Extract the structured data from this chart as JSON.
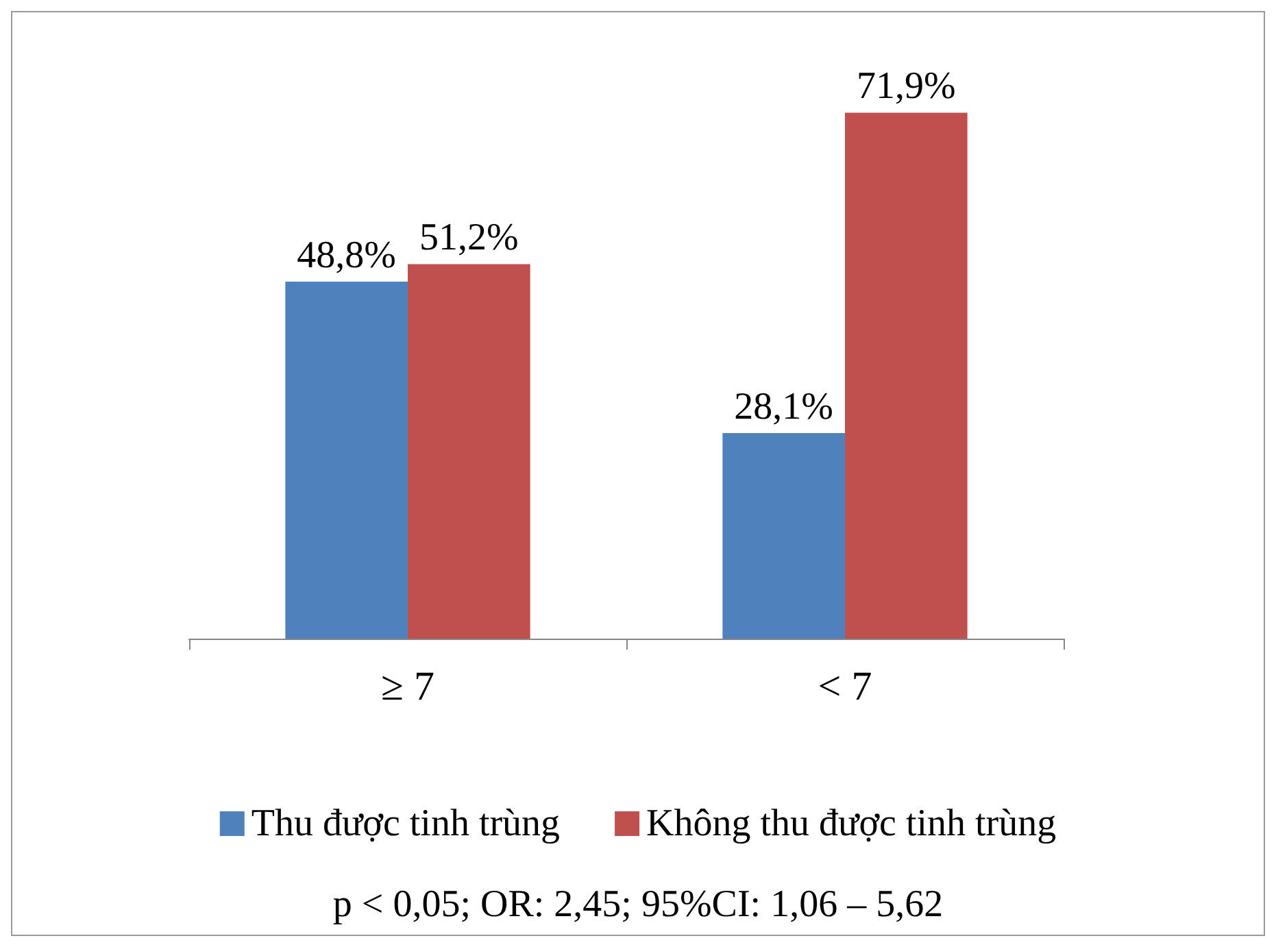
{
  "chart_data": {
    "type": "bar",
    "categories": [
      "≥ 7",
      "< 7"
    ],
    "series": [
      {
        "name": "Thu được tinh trùng",
        "color": "#4f81bd",
        "values": [
          48.8,
          28.1
        ],
        "value_labels": [
          "48,8%",
          "28,1%"
        ]
      },
      {
        "name": "Không thu được tinh trùng",
        "color": "#c0504d",
        "values": [
          51.2,
          71.9
        ],
        "value_labels": [
          "51,2%",
          "71,9%"
        ]
      }
    ],
    "legend": "bottom",
    "annotations": [
      "p < 0,05; OR: 2,45; 95%CI: 1,06 – 5,62"
    ]
  }
}
